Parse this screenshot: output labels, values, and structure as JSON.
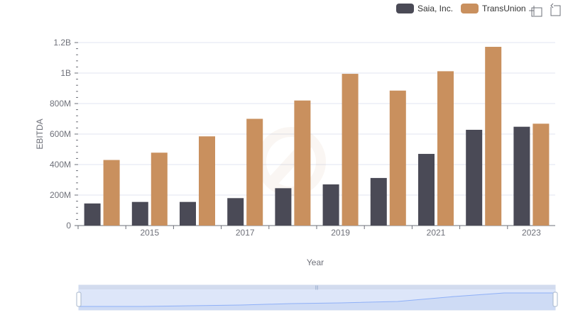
{
  "chart_data": {
    "type": "bar",
    "xlabel": "Year",
    "ylabel": "EBITDA",
    "ylim": [
      0,
      1200000000
    ],
    "yticks": [
      {
        "value": 0,
        "label": "0"
      },
      {
        "value": 200000000,
        "label": "200M"
      },
      {
        "value": 400000000,
        "label": "400M"
      },
      {
        "value": 600000000,
        "label": "600M"
      },
      {
        "value": 800000000,
        "label": "800M"
      },
      {
        "value": 1000000000,
        "label": "1B"
      },
      {
        "value": 1200000000,
        "label": "1.2B"
      }
    ],
    "categories": [
      "2014",
      "2015",
      "2016",
      "2017",
      "2018",
      "2019",
      "2020",
      "2021",
      "2022",
      "2023"
    ],
    "x_tick_labels": [
      "2015",
      "2017",
      "2019",
      "2021",
      "2023"
    ],
    "grid": true,
    "legend_position": "top-right",
    "series": [
      {
        "name": "Saia, Inc.",
        "color": "#4a4a56",
        "values": [
          145000000,
          155000000,
          155000000,
          180000000,
          245000000,
          270000000,
          312000000,
          470000000,
          628000000,
          648000000
        ]
      },
      {
        "name": "TransUnion",
        "color": "#c9905e",
        "values": [
          430000000,
          478000000,
          585000000,
          700000000,
          820000000,
          995000000,
          885000000,
          1012000000,
          1172000000,
          668000000
        ]
      }
    ]
  },
  "toolbar": {
    "zoom_icon": "zoom-icon",
    "restore_icon": "restore-icon"
  },
  "datazoom": {
    "handle_color": "#a7b7cc",
    "fill_color": "#d6e0f7"
  }
}
